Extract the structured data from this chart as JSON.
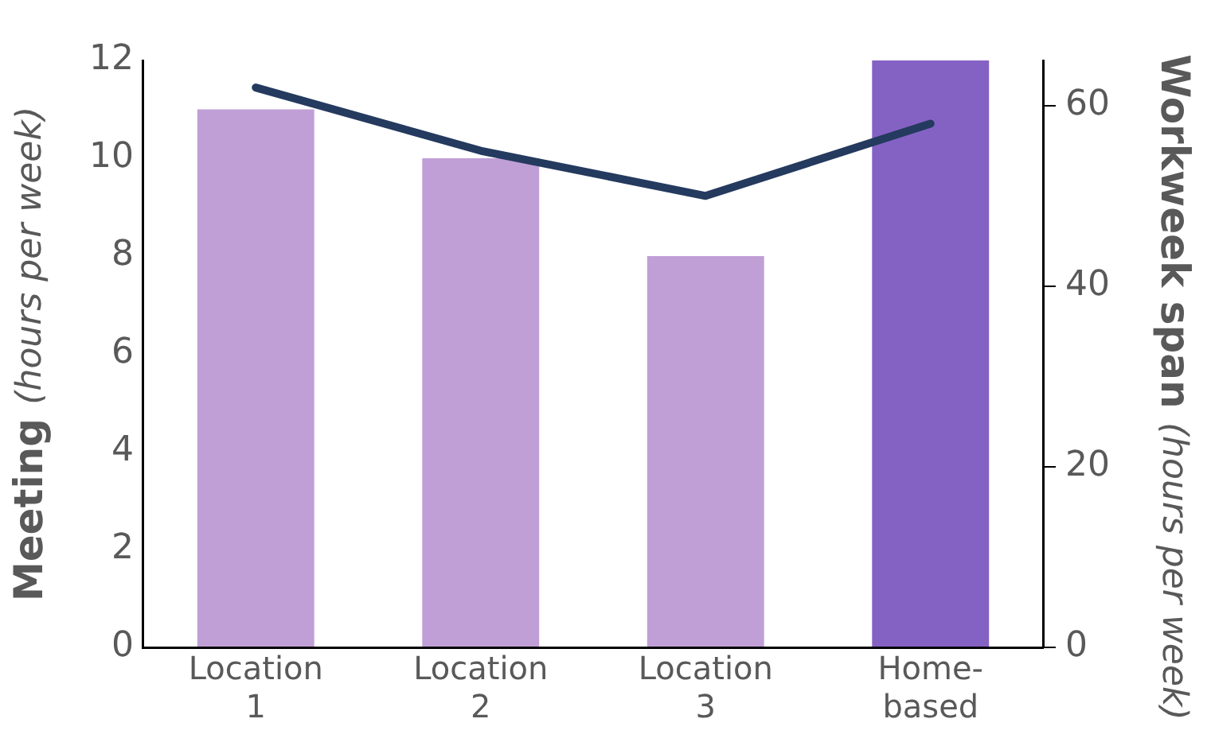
{
  "chart_data": {
    "type": "bar",
    "ylabel": "Meeting (hours per week)",
    "y2label": "Workweek span (hours per week)",
    "categories": [
      "Location 1",
      "Location 2",
      "Location 3",
      "Home-based"
    ],
    "series": [
      {
        "colors": [
          "#c09fd6",
          "#c09fd6",
          "#c09fd6",
          "#8462c4"
        ],
        "values": [
          11,
          10,
          8,
          12
        ]
      },
      {
        "type": "line",
        "axis": "y2",
        "color": "#243a5e",
        "values": [
          62,
          55,
          50,
          58
        ]
      }
    ],
    "ylim": [
      0,
      12
    ],
    "yticks": [
      0,
      2,
      4,
      6,
      8,
      10,
      12
    ],
    "y2lim": [
      0,
      65
    ],
    "y2ticks": [
      0,
      20,
      40,
      60
    ],
    "grid": false,
    "legend": false,
    "marker": "none",
    "line_style": "solid"
  }
}
